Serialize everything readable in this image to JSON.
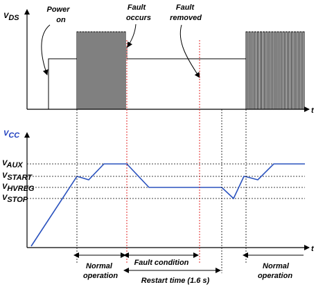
{
  "labels": {
    "vds_axis": "V",
    "vds_sub": "DS",
    "vcc_axis": "V",
    "vcc_sub": "CC",
    "t_axis_top": "t",
    "t_axis_bottom": "t",
    "v_aux": "V",
    "v_aux_sub": "AUX",
    "v_start": "V",
    "v_start_sub": "START",
    "v_hvreg": "V",
    "v_hvreg_sub": "HVREG",
    "v_stop": "V",
    "v_stop_sub": "STOP",
    "power_on_1": "Power",
    "power_on_2": "on",
    "fault_occurs_1": "Fault",
    "fault_occurs_2": "occurs",
    "fault_removed_1": "Fault",
    "fault_removed_2": "removed",
    "normal_op_left_1": "Normal",
    "normal_op_left_2": "operation",
    "fault_condition": "Fault condition",
    "restart_time": "Restart time (1.6 s)",
    "normal_op_right_1": "Normal",
    "normal_op_right_2": "operation"
  },
  "colors": {
    "vcc_trace": "#2a52be",
    "fault_marker": "#e01010",
    "axis": "#000000",
    "guide": "#000000"
  }
}
